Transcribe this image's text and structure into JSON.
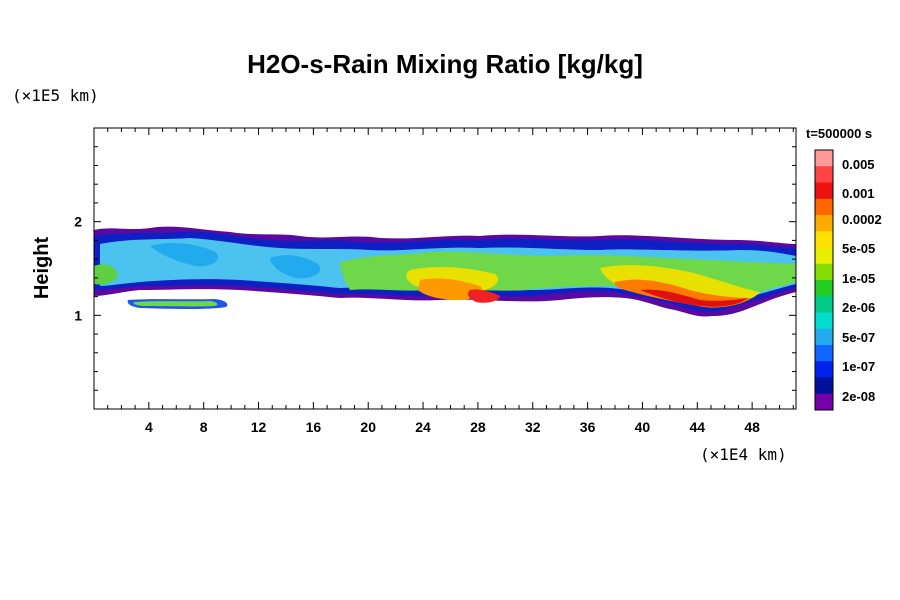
{
  "chart_data": {
    "type": "heatmap",
    "title": "H2O-s-Rain Mixing Ratio [kg/kg]",
    "ylabel": "Height",
    "x_unit": "(×1E4 km)",
    "y_unit": "(×1E5 km)",
    "xlim": [
      0,
      51.2
    ],
    "ylim": [
      0,
      3
    ],
    "x_ticks": [
      4,
      8,
      12,
      16,
      20,
      24,
      28,
      32,
      36,
      40,
      44,
      48
    ],
    "y_ticks": [
      1,
      2
    ],
    "time_label": "t=500000 s",
    "colorbar": {
      "labels": [
        "0.005",
        "0.001",
        "0.0002",
        "5e-05",
        "1e-05",
        "2e-06",
        "5e-07",
        "1e-07",
        "2e-08"
      ],
      "colors": [
        "#ff9a9a",
        "#ff4444",
        "#ee1111",
        "#ff6600",
        "#ffaa00",
        "#ffe000",
        "#e8f000",
        "#88dd00",
        "#22cc22",
        "#00cc88",
        "#00ddcc",
        "#22aaee",
        "#1166ff",
        "#0022ee",
        "#001199",
        "#7700aa"
      ]
    },
    "regions": [
      {
        "level": "2e-08",
        "x": [
          0,
          51.2
        ],
        "y": [
          1.25,
          1.97
        ]
      },
      {
        "level": "5e-07",
        "x": [
          0.2,
          51.0
        ],
        "y": [
          1.3,
          1.85
        ]
      },
      {
        "level": "5e-05",
        "x": [
          16.5,
          51
        ],
        "y": [
          1.18,
          1.72
        ]
      },
      {
        "level": "0.0002",
        "x": [
          22,
          31
        ],
        "y": [
          1.15,
          1.42
        ]
      },
      {
        "level": "0.001",
        "x": [
          38.5,
          49.5
        ],
        "y": [
          1.08,
          1.45
        ]
      },
      {
        "level": "5e-05",
        "x": [
          2.5,
          9.8
        ],
        "y": [
          1.08,
          1.16
        ]
      }
    ]
  }
}
